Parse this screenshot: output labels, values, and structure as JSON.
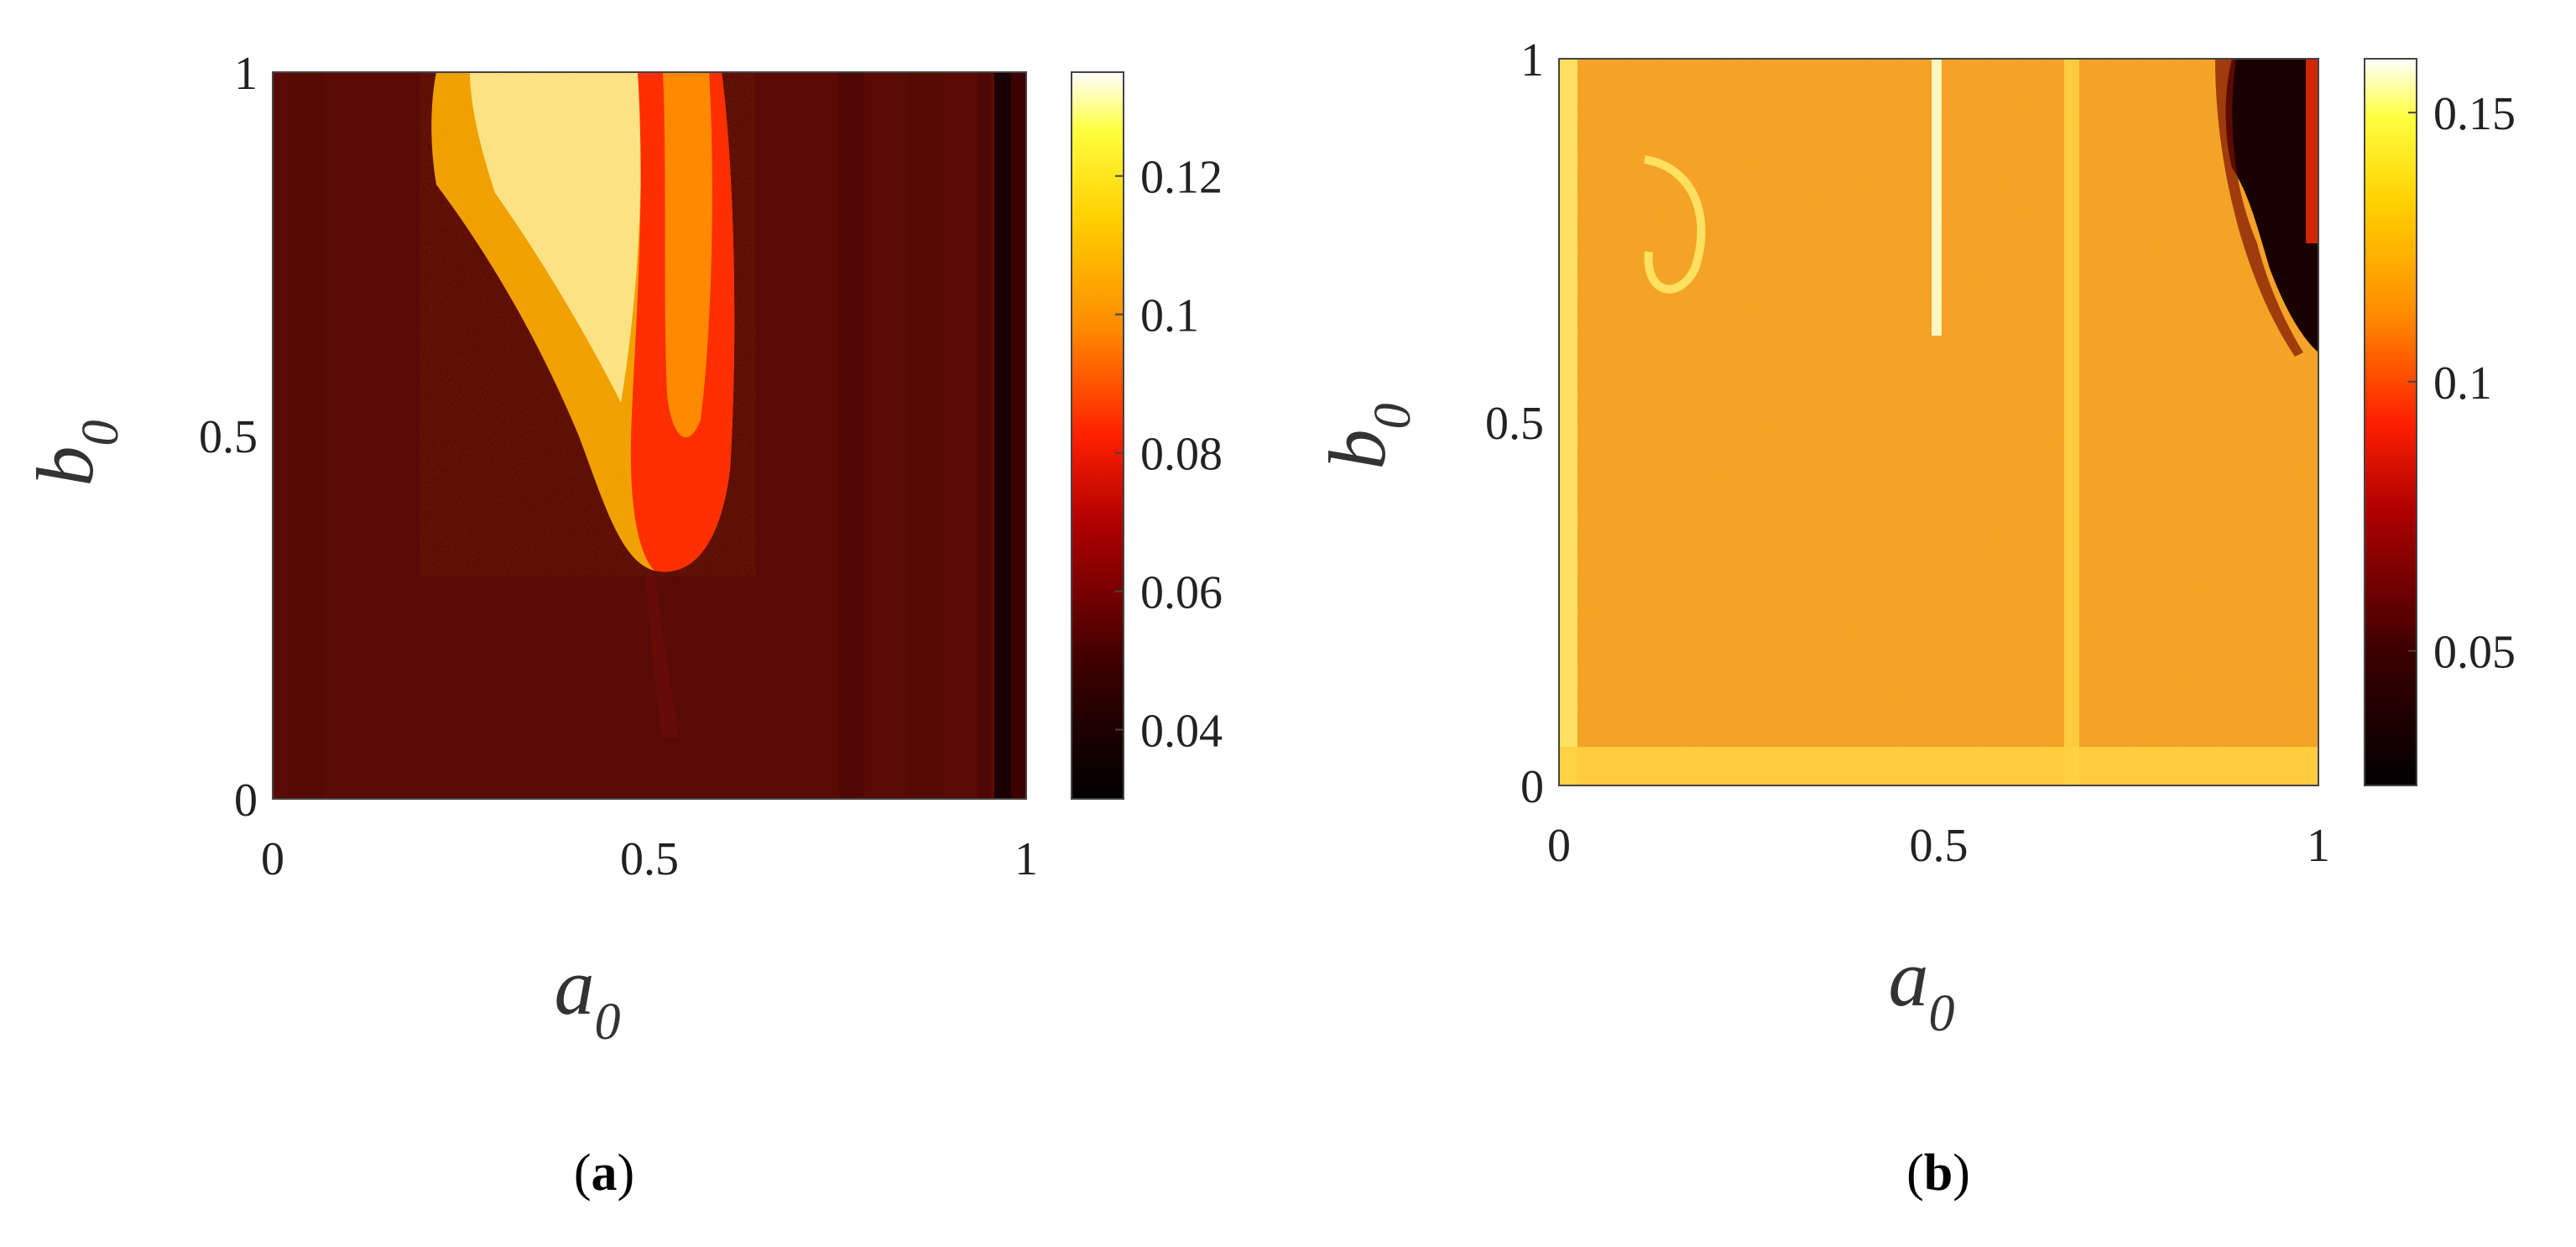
{
  "chart_data": [
    {
      "type": "heatmap",
      "panel_label": "a",
      "xlabel": "a",
      "xlabel_sub": "0",
      "ylabel": "b",
      "ylabel_sub": "0",
      "xlim": [
        0,
        1
      ],
      "ylim": [
        0,
        1
      ],
      "xticks": [
        "0",
        "0.5",
        "1"
      ],
      "yticks": [
        "0",
        "0.5",
        "1"
      ],
      "colorbar": {
        "min": 0.03,
        "max": 0.135,
        "ticks": [
          0.04,
          0.06,
          0.08,
          0.1,
          0.12
        ],
        "tick_labels": [
          "0.04",
          "0.06",
          "0.08",
          "0.1",
          "0.12"
        ]
      },
      "background_value": 0.048,
      "regions": [
        {
          "shape": "tongue",
          "a_range": [
            0.22,
            0.61
          ],
          "b_range": [
            0.31,
            1.0
          ],
          "value": 0.11
        },
        {
          "shape": "inner-band",
          "a_range": [
            0.47,
            0.61
          ],
          "b_range": [
            0.31,
            1.0
          ],
          "value": 0.072
        },
        {
          "shape": "stripe",
          "a_range": [
            0.98,
            1.0
          ],
          "b_range": [
            0.0,
            1.0
          ],
          "value": 0.035
        }
      ],
      "grid": false
    },
    {
      "type": "heatmap",
      "panel_label": "b",
      "xlabel": "a",
      "xlabel_sub": "0",
      "ylabel": "b",
      "ylabel_sub": "0",
      "xlim": [
        0,
        1
      ],
      "ylim": [
        0,
        1
      ],
      "xticks": [
        "0",
        "0.5",
        "1"
      ],
      "yticks": [
        "0",
        "0.5",
        "1"
      ],
      "colorbar": {
        "min": 0.025,
        "max": 0.16,
        "ticks": [
          0.05,
          0.1,
          0.15
        ],
        "tick_labels": [
          "0.05",
          "0.1",
          "0.15"
        ]
      },
      "background_value": 0.115,
      "regions": [
        {
          "shape": "stripe",
          "a_range": [
            0.49,
            0.51
          ],
          "b_range": [
            0.6,
            1.0
          ],
          "value": 0.15
        },
        {
          "shape": "stripe",
          "a_range": [
            0.66,
            0.68
          ],
          "b_range": [
            0.0,
            1.0
          ],
          "value": 0.14
        },
        {
          "shape": "stripe",
          "a_range": [
            0.0,
            0.02
          ],
          "b_range": [
            0.0,
            1.0
          ],
          "value": 0.14
        },
        {
          "shape": "band",
          "a_range": [
            0.0,
            1.0
          ],
          "b_range": [
            0.0,
            0.05
          ],
          "value": 0.14
        },
        {
          "shape": "corner",
          "a_range": [
            0.88,
            1.0
          ],
          "b_range": [
            0.62,
            1.0
          ],
          "value": 0.03
        }
      ],
      "grid": false
    }
  ]
}
